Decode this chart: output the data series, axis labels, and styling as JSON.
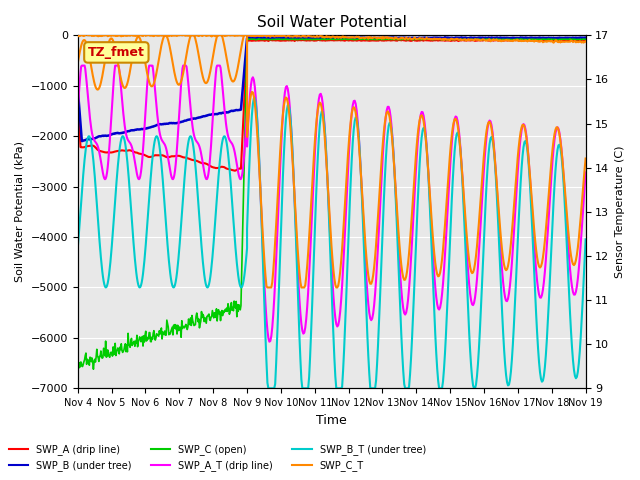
{
  "title": "Soil Water Potential",
  "ylabel_left": "Soil Water Potential (kPa)",
  "ylabel_right": "Sensor Temperature (C)",
  "xlabel": "Time",
  "ylim_left": [
    -7000,
    0
  ],
  "ylim_right": [
    9.0,
    17.0
  ],
  "bg_color": "#e8e8e8",
  "annotation_text": "TZ_fmet",
  "annotation_color": "#cc0000",
  "annotation_bg": "#ffff99",
  "annotation_border": "#cc8800",
  "lines": {
    "SWP_A": {
      "color": "#ff0000",
      "label": "SWP_A (drip line)",
      "lw": 1.5
    },
    "SWP_B": {
      "color": "#0000cc",
      "label": "SWP_B (under tree)",
      "lw": 1.8
    },
    "SWP_C": {
      "color": "#00cc00",
      "label": "SWP_C (open)",
      "lw": 1.2
    },
    "SWP_A_T": {
      "color": "#ff00ff",
      "label": "SWP_A_T (drip line)",
      "lw": 1.5
    },
    "SWP_B_T": {
      "color": "#00cccc",
      "label": "SWP_B_T (under tree)",
      "lw": 1.5
    },
    "SWP_C_T": {
      "color": "#ff8800",
      "label": "SWP_C_T",
      "lw": 1.5
    }
  },
  "xtick_labels": [
    "Nov 4",
    "Nov 5",
    "Nov 6",
    "Nov 7",
    "Nov 8",
    "Nov 9",
    "Nov 10",
    "Nov 11",
    "Nov 12",
    "Nov 13",
    "Nov 14",
    "Nov 15",
    "Nov 16",
    "Nov 17",
    "Nov 18",
    "Nov 19"
  ]
}
